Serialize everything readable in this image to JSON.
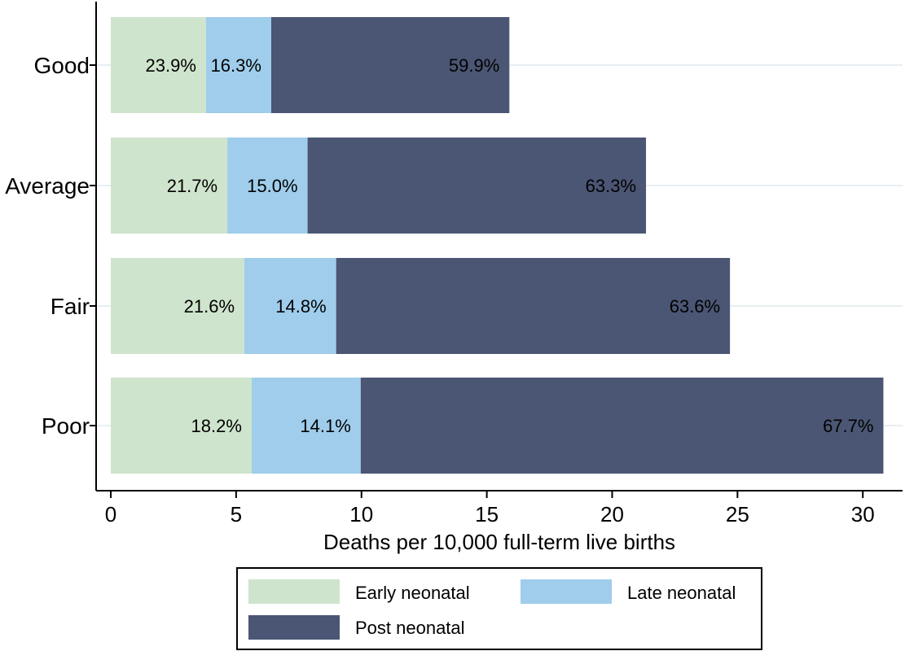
{
  "chart_data": {
    "type": "bar",
    "orientation": "horizontal",
    "stacked": true,
    "categories": [
      "Good",
      "Average",
      "Fair",
      "Poor"
    ],
    "xlabel": "Deaths per 10,000 full-term live births",
    "ylabel": "",
    "xlim": [
      0,
      31
    ],
    "xticks": [
      0,
      5,
      10,
      15,
      20,
      25,
      30
    ],
    "grid": true,
    "legend_position": "bottom",
    "series": [
      {
        "name": "Early neonatal",
        "color": "#cfe4cc",
        "values": [
          3.8,
          4.65,
          5.33,
          5.62
        ],
        "labels": [
          "23.9%",
          "21.7%",
          "21.6%",
          "18.2%"
        ]
      },
      {
        "name": "Late neonatal",
        "color": "#9fcdeb",
        "values": [
          2.6,
          3.2,
          3.66,
          4.35
        ],
        "labels": [
          "16.3%",
          "15.0%",
          "14.8%",
          "14.1%"
        ]
      },
      {
        "name": "Post neonatal",
        "color": "#4b5674",
        "values": [
          9.5,
          13.5,
          15.71,
          20.85
        ],
        "labels": [
          "59.9%",
          "63.3%",
          "63.6%",
          "67.7%"
        ]
      }
    ]
  }
}
